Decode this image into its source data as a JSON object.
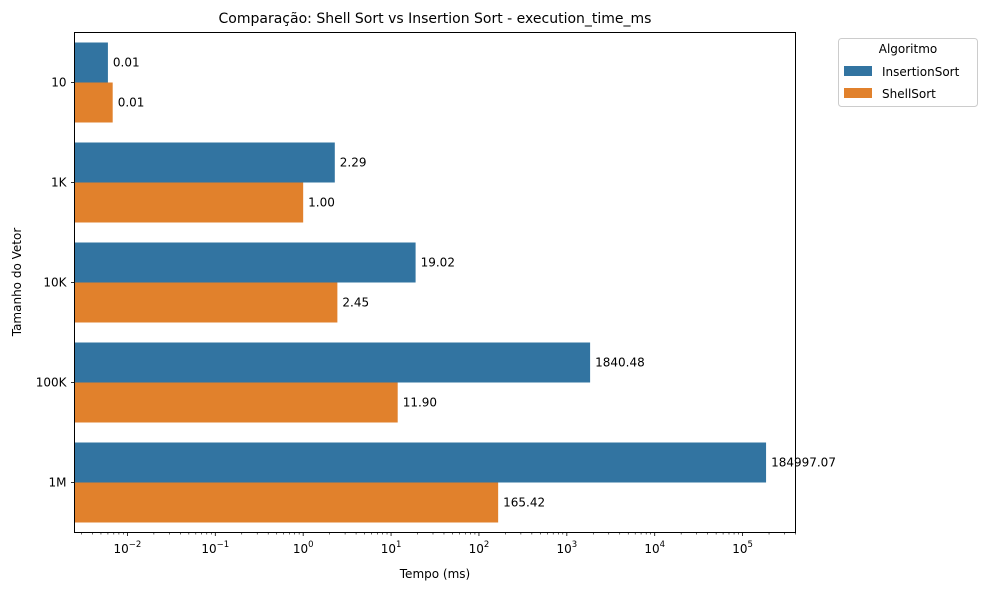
{
  "chart_data": {
    "type": "bar",
    "orientation": "horizontal",
    "title": "Comparação: Shell Sort vs Insertion Sort - execution_time_ms",
    "xlabel": "Tempo (ms)",
    "ylabel": "Tamanho do Vetor",
    "x_scale": "log",
    "xlim": [
      0.0025,
      400000
    ],
    "x_ticks": [
      0.01,
      0.1,
      1,
      10,
      100,
      1000,
      10000,
      100000
    ],
    "x_tick_labels": [
      {
        "base": "10",
        "exp": "−2"
      },
      {
        "base": "10",
        "exp": "−1"
      },
      {
        "base": "10",
        "exp": "0"
      },
      {
        "base": "10",
        "exp": "1"
      },
      {
        "base": "10",
        "exp": "2"
      },
      {
        "base": "10",
        "exp": "3"
      },
      {
        "base": "10",
        "exp": "4"
      },
      {
        "base": "10",
        "exp": "5"
      }
    ],
    "categories": [
      "10",
      "1K",
      "10K",
      "100K",
      "1M"
    ],
    "series": [
      {
        "name": "InsertionSort",
        "color": "#3274a1",
        "values": [
          0.006,
          2.29,
          19.02,
          1840.48,
          184997.07
        ],
        "labels": [
          "0.01",
          "2.29",
          "19.02",
          "1840.48",
          "184997.07"
        ]
      },
      {
        "name": "ShellSort",
        "color": "#e1812c",
        "values": [
          0.0068,
          1.0,
          2.45,
          11.9,
          165.42
        ],
        "labels": [
          "0.01",
          "1.00",
          "2.45",
          "11.90",
          "165.42"
        ]
      }
    ],
    "legend_title": "Algoritmo",
    "legend_position": "outside-top-right",
    "grid": false
  }
}
